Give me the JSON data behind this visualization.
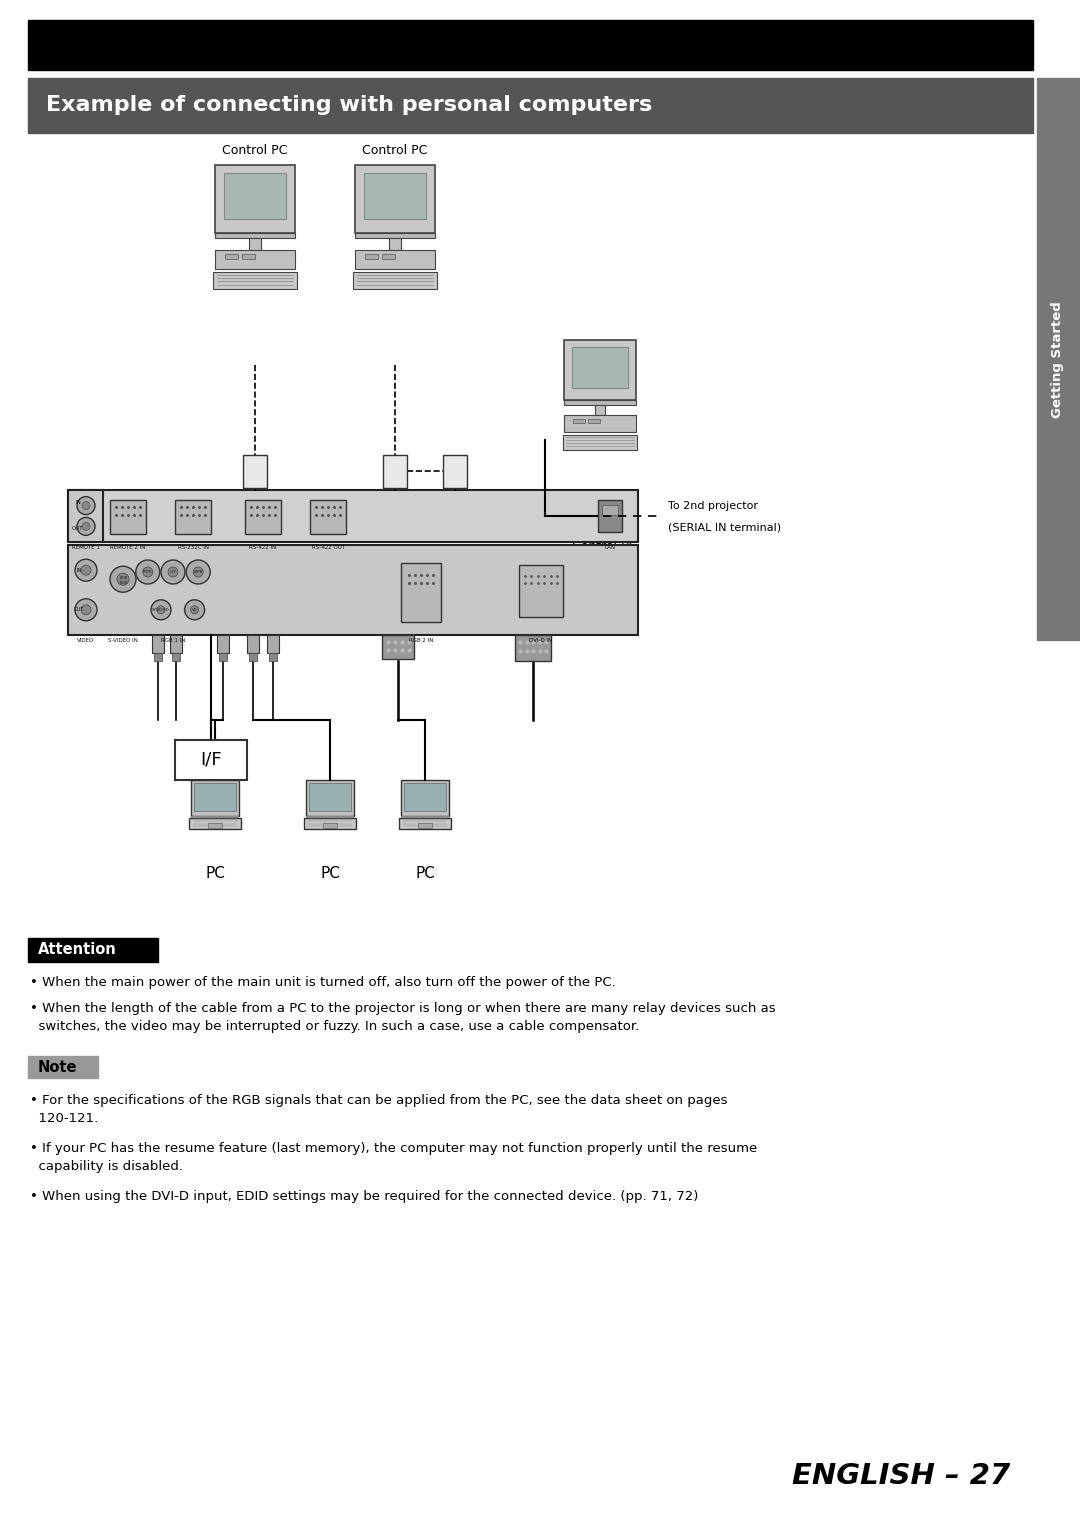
{
  "page_bg": "#ffffff",
  "top_bar_color": "#000000",
  "section_title": "Example of connecting with personal computers",
  "section_title_bg": "#555555",
  "section_title_color": "#ffffff",
  "section_title_fontsize": 16,
  "sidebar_color": "#777777",
  "sidebar_text": "Getting Started",
  "attention_label": "Attention",
  "attention_bg": "#000000",
  "attention_color": "#ffffff",
  "note_label": "Note",
  "note_bg": "#999999",
  "note_color": "#000000",
  "body_fontsize": 9.5,
  "attention_bullet1": "When the main power of the main unit is turned off, also turn off the power of the PC.",
  "attention_bullet2a": "When the length of the cable from a PC to the projector is long or when there are many relay devices such as",
  "attention_bullet2b": "  switches, the video may be interrupted or fuzzy. In such a case, use a cable compensator.",
  "note_bullet1a": "For the specifications of the RGB signals that can be applied from the PC, see the data sheet on pages",
  "note_bullet1b": "  120-121.",
  "note_bullet2a": "If your PC has the resume feature (last memory), the computer may not function properly until the resume",
  "note_bullet2b": "  capability is disabled.",
  "note_bullet3": "When using the DVI-D input, EDID settings may be required for the connected device. (pp. 71, 72)",
  "page_number": "ENGLISH – 27",
  "control_pc_label": "Control PC",
  "if_label": "I/F",
  "pc_label": "PC",
  "to_2nd_line1": "To 2nd projector",
  "to_2nd_line2": "(SERIAL IN terminal)"
}
